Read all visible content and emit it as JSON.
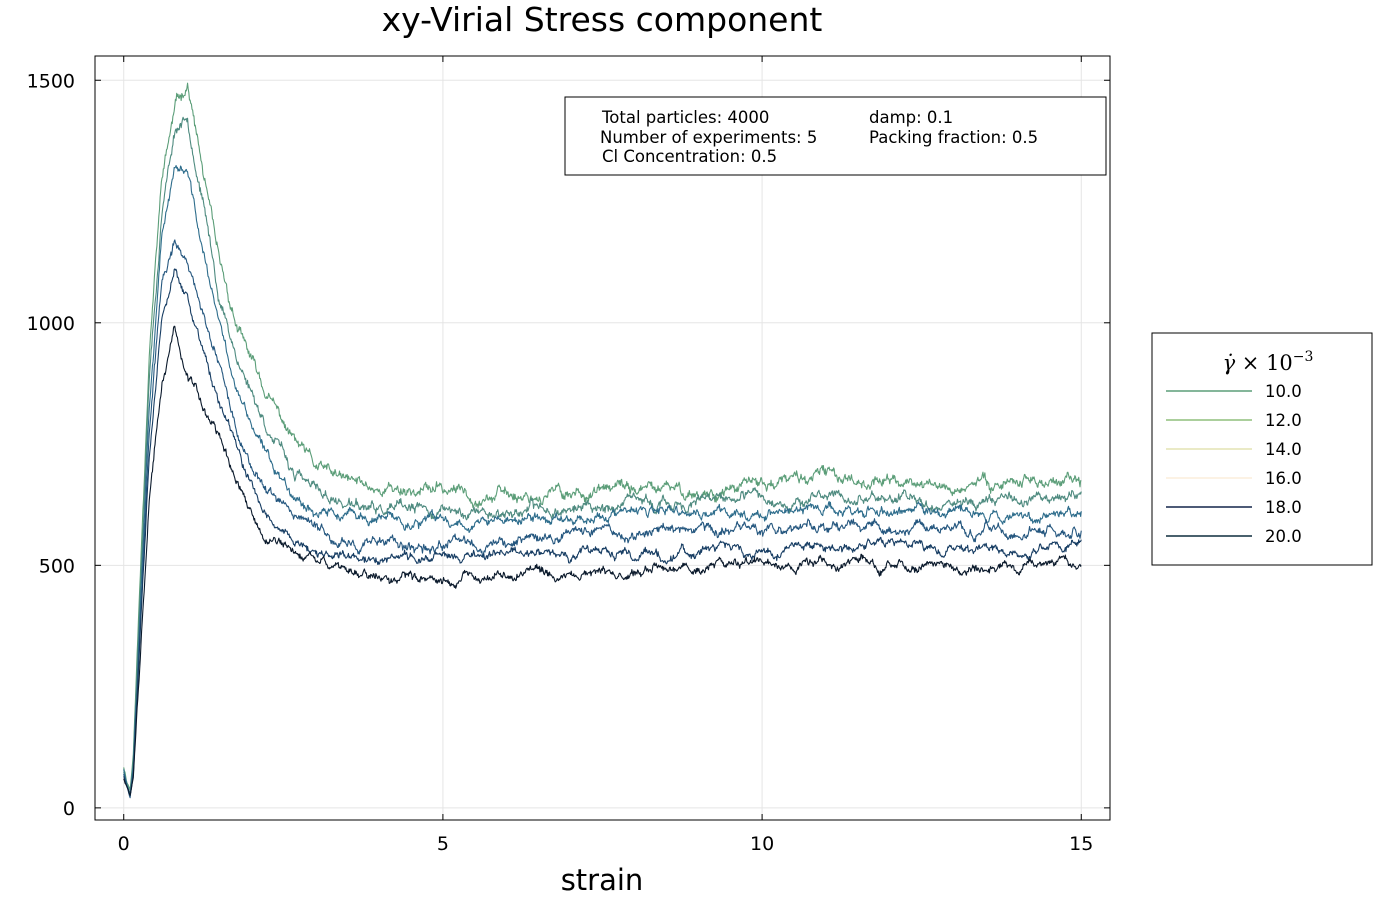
{
  "chart_data": {
    "type": "line",
    "title": "xy-Virial Stress component",
    "xlabel": "strain",
    "ylabel": "",
    "xlim": [
      -0.45,
      15.45
    ],
    "ylim": [
      -25,
      1550
    ],
    "xticks": [
      0,
      5,
      10,
      15
    ],
    "yticks": [
      0,
      500,
      1000,
      1500
    ],
    "grid": true,
    "legend": {
      "placement": "right-outside",
      "title_sym": "γ̇",
      "title_times": " × 10",
      "title_exp": "−3"
    },
    "annotation": {
      "lines": [
        [
          "Total particles: 4000",
          "damp: 0.1"
        ],
        [
          "Number of experiments: 5",
          "Packing fraction: 0.5"
        ],
        [
          "Cl Concentration: 0.5",
          ""
        ]
      ]
    },
    "curve_x": [
      0,
      0.05,
      0.1,
      0.15,
      0.25,
      0.4,
      0.6,
      0.8,
      1.0,
      1.2,
      1.5,
      1.8,
      2.2,
      2.6,
      3.0,
      3.5,
      4.0,
      5.0,
      6.0,
      7.0,
      8.0,
      9.0,
      10.0,
      11.0,
      12.0,
      13.0,
      14.0,
      15.0
    ],
    "series": [
      {
        "name": "10.0",
        "color": "#5c9e79",
        "legend_color": "#5c9e79",
        "noise": 14,
        "seed": 11,
        "values": [
          85,
          55,
          40,
          110,
          450,
          950,
          1300,
          1440,
          1495,
          1340,
          1110,
          980,
          860,
          770,
          700,
          670,
          660,
          655,
          645,
          650,
          655,
          650,
          665,
          685,
          675,
          660,
          680,
          665
        ]
      },
      {
        "name": "12.0",
        "color": "#4f8b80",
        "legend_color": "#8fbf7c",
        "noise": 13,
        "seed": 23,
        "values": [
          75,
          50,
          35,
          100,
          430,
          900,
          1240,
          1400,
          1430,
          1280,
          1050,
          920,
          800,
          700,
          650,
          625,
          610,
          610,
          610,
          620,
          625,
          625,
          635,
          640,
          640,
          630,
          640,
          650
        ]
      },
      {
        "name": "14.0",
        "color": "#2e6d8c",
        "legend_color": "#e3e3b4",
        "noise": 12,
        "seed": 37,
        "values": [
          80,
          52,
          30,
          90,
          400,
          850,
          1180,
          1330,
          1310,
          1170,
          990,
          850,
          730,
          660,
          615,
          600,
          590,
          590,
          590,
          600,
          605,
          605,
          610,
          615,
          610,
          610,
          605,
          615
        ]
      },
      {
        "name": "16.0",
        "color": "#25577f",
        "legend_color": "#fbeedb",
        "noise": 12,
        "seed": 49,
        "values": [
          70,
          48,
          28,
          80,
          360,
          780,
          1080,
          1160,
          1130,
          1040,
          900,
          760,
          650,
          600,
          565,
          550,
          540,
          540,
          550,
          565,
          565,
          570,
          575,
          575,
          580,
          570,
          565,
          580
        ]
      },
      {
        "name": "18.0",
        "color": "#173d63",
        "legend_color": "#13254a",
        "noise": 11,
        "seed": 61,
        "values": [
          65,
          45,
          25,
          70,
          330,
          720,
          1010,
          1100,
          1040,
          960,
          830,
          720,
          610,
          560,
          530,
          515,
          510,
          520,
          525,
          525,
          520,
          530,
          535,
          535,
          545,
          530,
          520,
          550
        ]
      },
      {
        "name": "20.0",
        "color": "#0b1a2c",
        "legend_color": "#0f2d3d",
        "noise": 11,
        "seed": 73,
        "values": [
          60,
          42,
          22,
          60,
          290,
          640,
          880,
          985,
          880,
          840,
          760,
          660,
          560,
          530,
          510,
          490,
          480,
          475,
          480,
          485,
          480,
          500,
          510,
          505,
          500,
          495,
          490,
          510
        ]
      }
    ]
  }
}
